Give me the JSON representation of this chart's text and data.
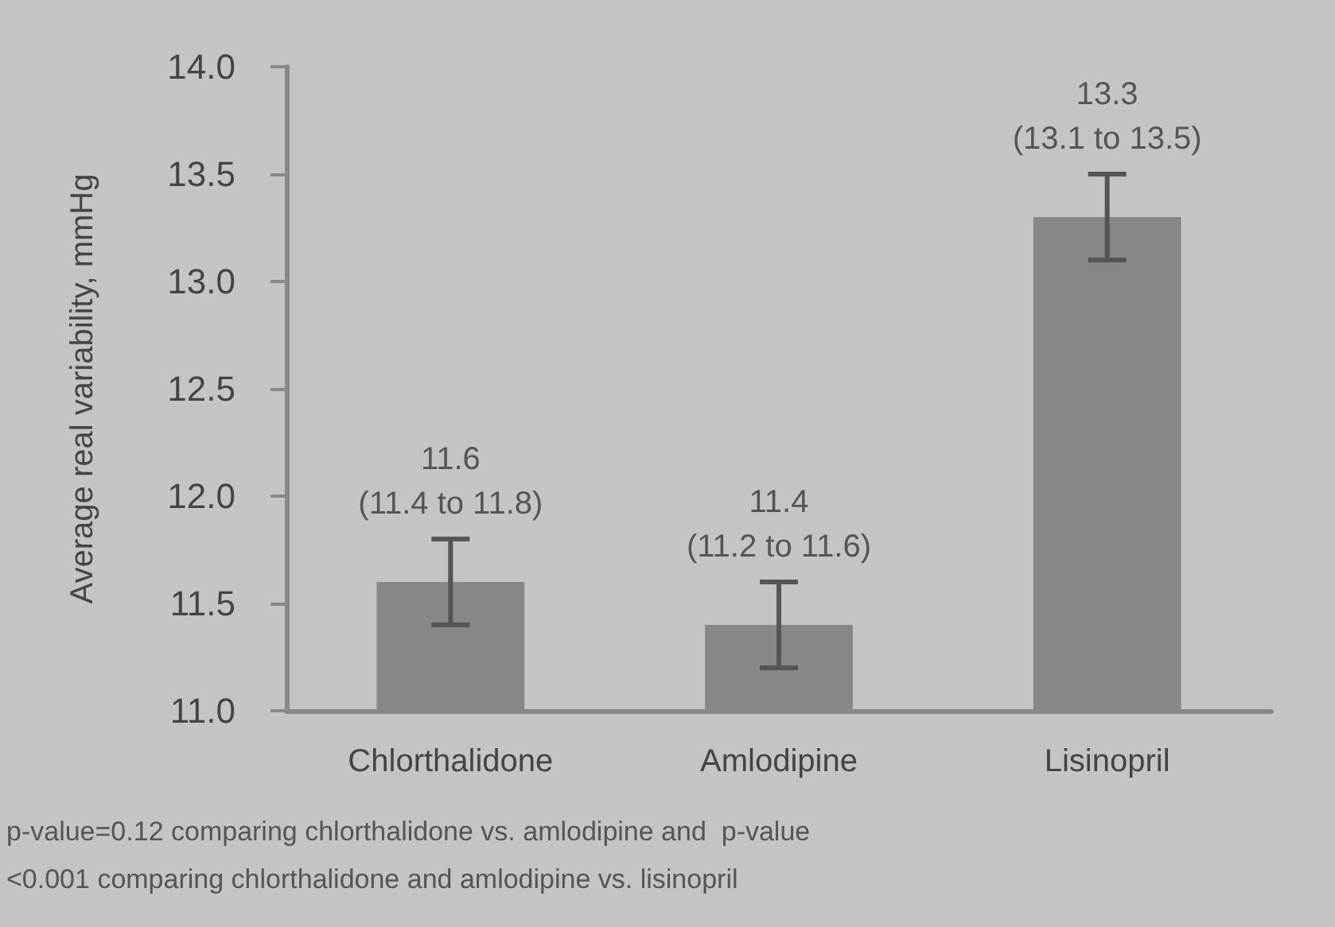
{
  "chart_data": {
    "type": "bar",
    "ylabel": "Average real variability, mmHg",
    "categories": [
      "Chlorthalidone",
      "Amlodipine",
      "Lisinopril"
    ],
    "values": [
      11.6,
      11.4,
      13.3
    ],
    "color": "#878787",
    "errors": [
      [
        11.4,
        11.8
      ],
      [
        11.2,
        11.6
      ],
      [
        13.1,
        13.5
      ]
    ],
    "value_labels": [
      "11.6\n(11.4 to 11.8)",
      "11.4\n(11.2 to 11.6)",
      "13.3\n(13.1 to 13.5)"
    ],
    "ylim": [
      11,
      14
    ],
    "yticks": [
      {
        "value": 11,
        "label": "11.0"
      },
      11.5,
      {
        "value": 12,
        "label": "12.0"
      },
      12.5,
      {
        "value": 13,
        "label": "13.0"
      },
      13.5,
      {
        "value": 14,
        "label": "14.0"
      }
    ],
    "grid": false,
    "annotations": [
      "p-value=0.12 comparing chlorthalidone vs. amlodipine and  p-value\n<0.001 comparing chlorthalidone and amlodipine vs. lisinopril"
    ]
  }
}
